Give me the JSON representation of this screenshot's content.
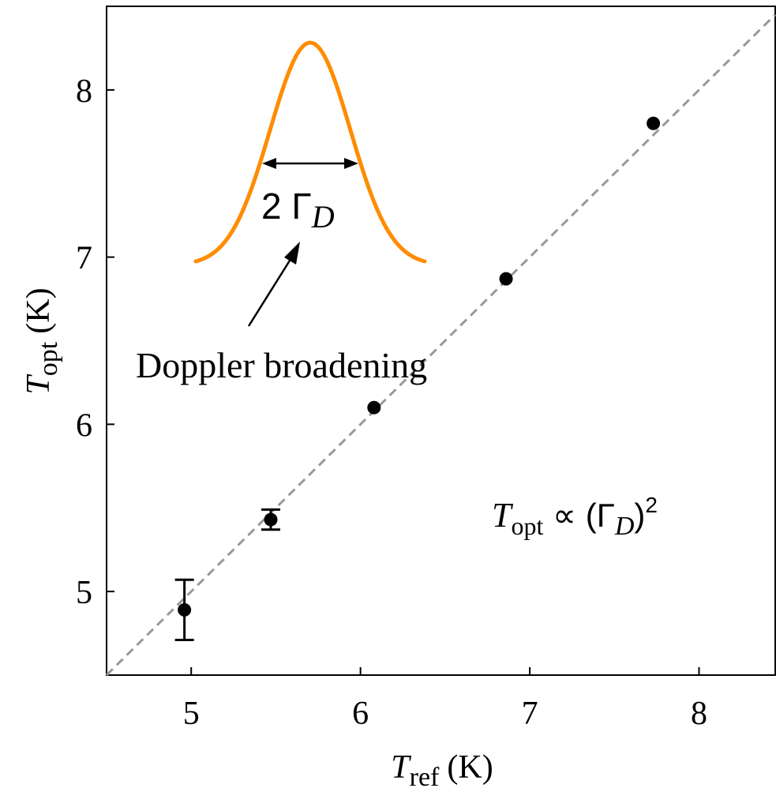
{
  "chart_data": {
    "type": "scatter",
    "xlabel": {
      "main": "T",
      "sub": "ref",
      "unit": "(K)"
    },
    "ylabel": {
      "main": "T",
      "sub": "opt",
      "unit": "(K)"
    },
    "xlim": [
      4.5,
      8.45
    ],
    "ylim": [
      4.5,
      8.5
    ],
    "x_ticks": [
      "5",
      "6",
      "7",
      "8"
    ],
    "y_ticks": [
      "5",
      "6",
      "7",
      "8"
    ],
    "grid": false,
    "series": [
      {
        "points": [
          {
            "x": 4.96,
            "y": 4.89,
            "yerr": 0.18
          },
          {
            "x": 5.47,
            "y": 5.43,
            "yerr": 0.06
          },
          {
            "x": 6.08,
            "y": 6.1,
            "yerr": 0
          },
          {
            "x": 6.86,
            "y": 6.87,
            "yerr": 0
          },
          {
            "x": 7.73,
            "y": 7.8,
            "yerr": 0
          }
        ],
        "color": "#000000"
      }
    ],
    "reference_line": {
      "style": "dashed",
      "color": "#999999",
      "from": [
        4.5,
        4.5
      ],
      "to": [
        8.45,
        8.45
      ]
    },
    "inset": {
      "curve_color": "#ff8c00",
      "width_label": {
        "main": "2 Γ",
        "sub": "D"
      },
      "arrow_label": "Doppler broadening"
    },
    "annotation": {
      "lhs": "T",
      "lhs_sub": "opt",
      "rel": " ∝ (Γ",
      "sub": "D",
      "close": ")",
      "sup": "2"
    }
  }
}
